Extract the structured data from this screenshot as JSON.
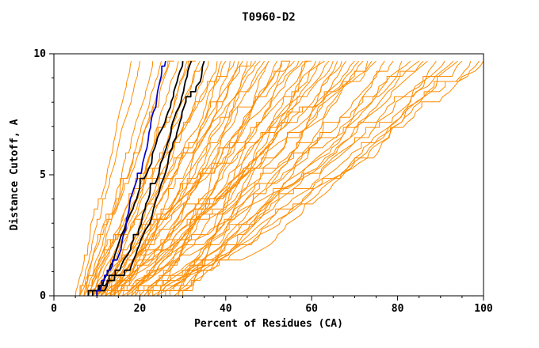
{
  "chart_data": {
    "type": "line",
    "title": "T0960-D2",
    "xlabel": "Percent of Residues (CA)",
    "ylabel": "Distance Cutoff, A",
    "xlim": [
      0,
      100
    ],
    "ylim": [
      0,
      10
    ],
    "x_major_ticks": [
      0,
      20,
      40,
      60,
      80,
      100
    ],
    "x_minor_step": 5,
    "y_major_ticks": [
      0,
      5,
      10
    ],
    "y_minor_step": 1,
    "y_top": 9.7,
    "grid": false,
    "legend": "none",
    "colors": {
      "orange": "#FF8C00",
      "black": "#000000",
      "blue": "#0000CC",
      "frame": "#000000"
    },
    "series_format": [
      "x_at_cutoff_0",
      "x_at_cutoff_9.7",
      "shape_exponent"
    ],
    "series": {
      "orange": [
        [
          5,
          18,
          0.9
        ],
        [
          6,
          20,
          1.0
        ],
        [
          6,
          23,
          0.95
        ],
        [
          7,
          25,
          1.05
        ],
        [
          7,
          27,
          0.9
        ],
        [
          8,
          29,
          1.0
        ],
        [
          8,
          31,
          0.95
        ],
        [
          9,
          33,
          1.05
        ],
        [
          9,
          35,
          0.9
        ],
        [
          10,
          36,
          1.0
        ],
        [
          10,
          38,
          0.95
        ],
        [
          11,
          40,
          1.05
        ],
        [
          11,
          41,
          0.9
        ],
        [
          12,
          43,
          1.0
        ],
        [
          12,
          44,
          0.95
        ],
        [
          13,
          46,
          1.05
        ],
        [
          13,
          47,
          0.9
        ],
        [
          14,
          49,
          1.0
        ],
        [
          14,
          50,
          0.95
        ],
        [
          15,
          52,
          1.0
        ],
        [
          8,
          53,
          0.85
        ],
        [
          9,
          55,
          0.9
        ],
        [
          10,
          56,
          0.95
        ],
        [
          11,
          58,
          0.85
        ],
        [
          12,
          59,
          0.9
        ],
        [
          13,
          61,
          0.95
        ],
        [
          14,
          62,
          0.9
        ],
        [
          15,
          64,
          0.85
        ],
        [
          16,
          65,
          0.9
        ],
        [
          16,
          67,
          0.95
        ],
        [
          17,
          68,
          0.85
        ],
        [
          17,
          70,
          0.9
        ],
        [
          18,
          71,
          0.95
        ],
        [
          18,
          73,
          0.85
        ],
        [
          19,
          75,
          0.9
        ],
        [
          19,
          77,
          0.85
        ],
        [
          20,
          79,
          0.9
        ],
        [
          20,
          81,
          0.85
        ],
        [
          21,
          83,
          0.9
        ],
        [
          21,
          85,
          0.8
        ],
        [
          22,
          87,
          0.85
        ],
        [
          22,
          89,
          0.8
        ],
        [
          23,
          91,
          0.85
        ],
        [
          23,
          93,
          0.8
        ],
        [
          24,
          95,
          0.85
        ],
        [
          25,
          97,
          0.8
        ],
        [
          26,
          99,
          0.85
        ],
        [
          27,
          100,
          0.8
        ],
        [
          28,
          72,
          0.8
        ],
        [
          29,
          66,
          0.8
        ],
        [
          30,
          60,
          0.75
        ],
        [
          26,
          55,
          0.8
        ],
        [
          24,
          50,
          0.85
        ],
        [
          22,
          45,
          0.8
        ],
        [
          7,
          34,
          1.1
        ],
        [
          8,
          42,
          1.05
        ],
        [
          9,
          48,
          1.1
        ],
        [
          10,
          57,
          1.0
        ],
        [
          11,
          63,
          1.05
        ],
        [
          12,
          74,
          0.95
        ],
        [
          13,
          86,
          0.9
        ],
        [
          14,
          94,
          0.85
        ],
        [
          6,
          28,
          1.1
        ],
        [
          15,
          39,
          0.85
        ]
      ],
      "black": [
        [
          8,
          30,
          0.7
        ],
        [
          9,
          32,
          0.65
        ],
        [
          10,
          35,
          0.7
        ]
      ],
      "blue": [
        [
          10,
          26,
          0.7
        ]
      ]
    }
  }
}
